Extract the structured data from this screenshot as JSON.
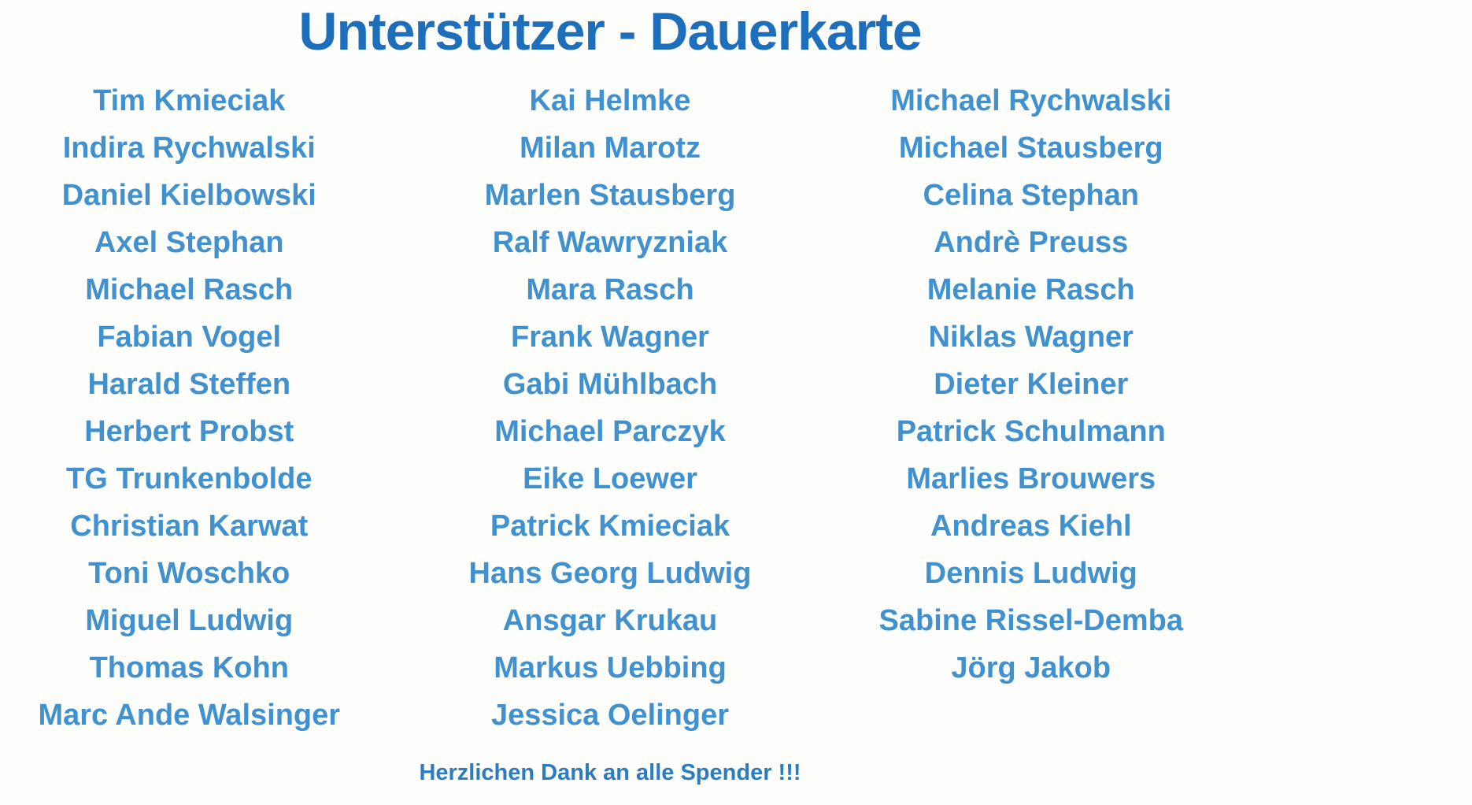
{
  "title": "Unterstützer - Dauerkarte",
  "footer": "Herzlichen Dank an alle Spender !!!",
  "colors": {
    "background": "#fdfdfc",
    "title_blue": "#1d6fbb",
    "name_blue": "#4191ce",
    "footer_blue": "#2b7cc0"
  },
  "columns": [
    {
      "names": [
        "Tim Kmieciak",
        "Indira Rychwalski",
        "Daniel Kielbowski",
        "Axel Stephan",
        "Michael Rasch",
        "Fabian Vogel",
        "Harald Steffen",
        "Herbert Probst",
        "TG Trunkenbolde",
        "Christian Karwat",
        "Toni Woschko",
        "Miguel Ludwig",
        "Thomas Kohn",
        "Marc Ande Walsinger"
      ]
    },
    {
      "names": [
        "Kai Helmke",
        "Milan Marotz",
        "Marlen Stausberg",
        "Ralf Wawryzniak",
        "Mara Rasch",
        "Frank Wagner",
        "Gabi Mühlbach",
        "Michael Parczyk",
        "Eike Loewer",
        "Patrick Kmieciak",
        "Hans Georg Ludwig",
        "Ansgar Krukau",
        "Markus Uebbing",
        "Jessica Oelinger"
      ]
    },
    {
      "names": [
        "Michael Rychwalski",
        "Michael Stausberg",
        "Celina Stephan",
        "Andrè Preuss",
        "Melanie Rasch",
        "Niklas Wagner",
        "Dieter Kleiner",
        "Patrick Schulmann",
        "Marlies Brouwers",
        "Andreas Kiehl",
        "Dennis Ludwig",
        "Sabine Rissel-Demba",
        "Jörg Jakob"
      ]
    }
  ]
}
